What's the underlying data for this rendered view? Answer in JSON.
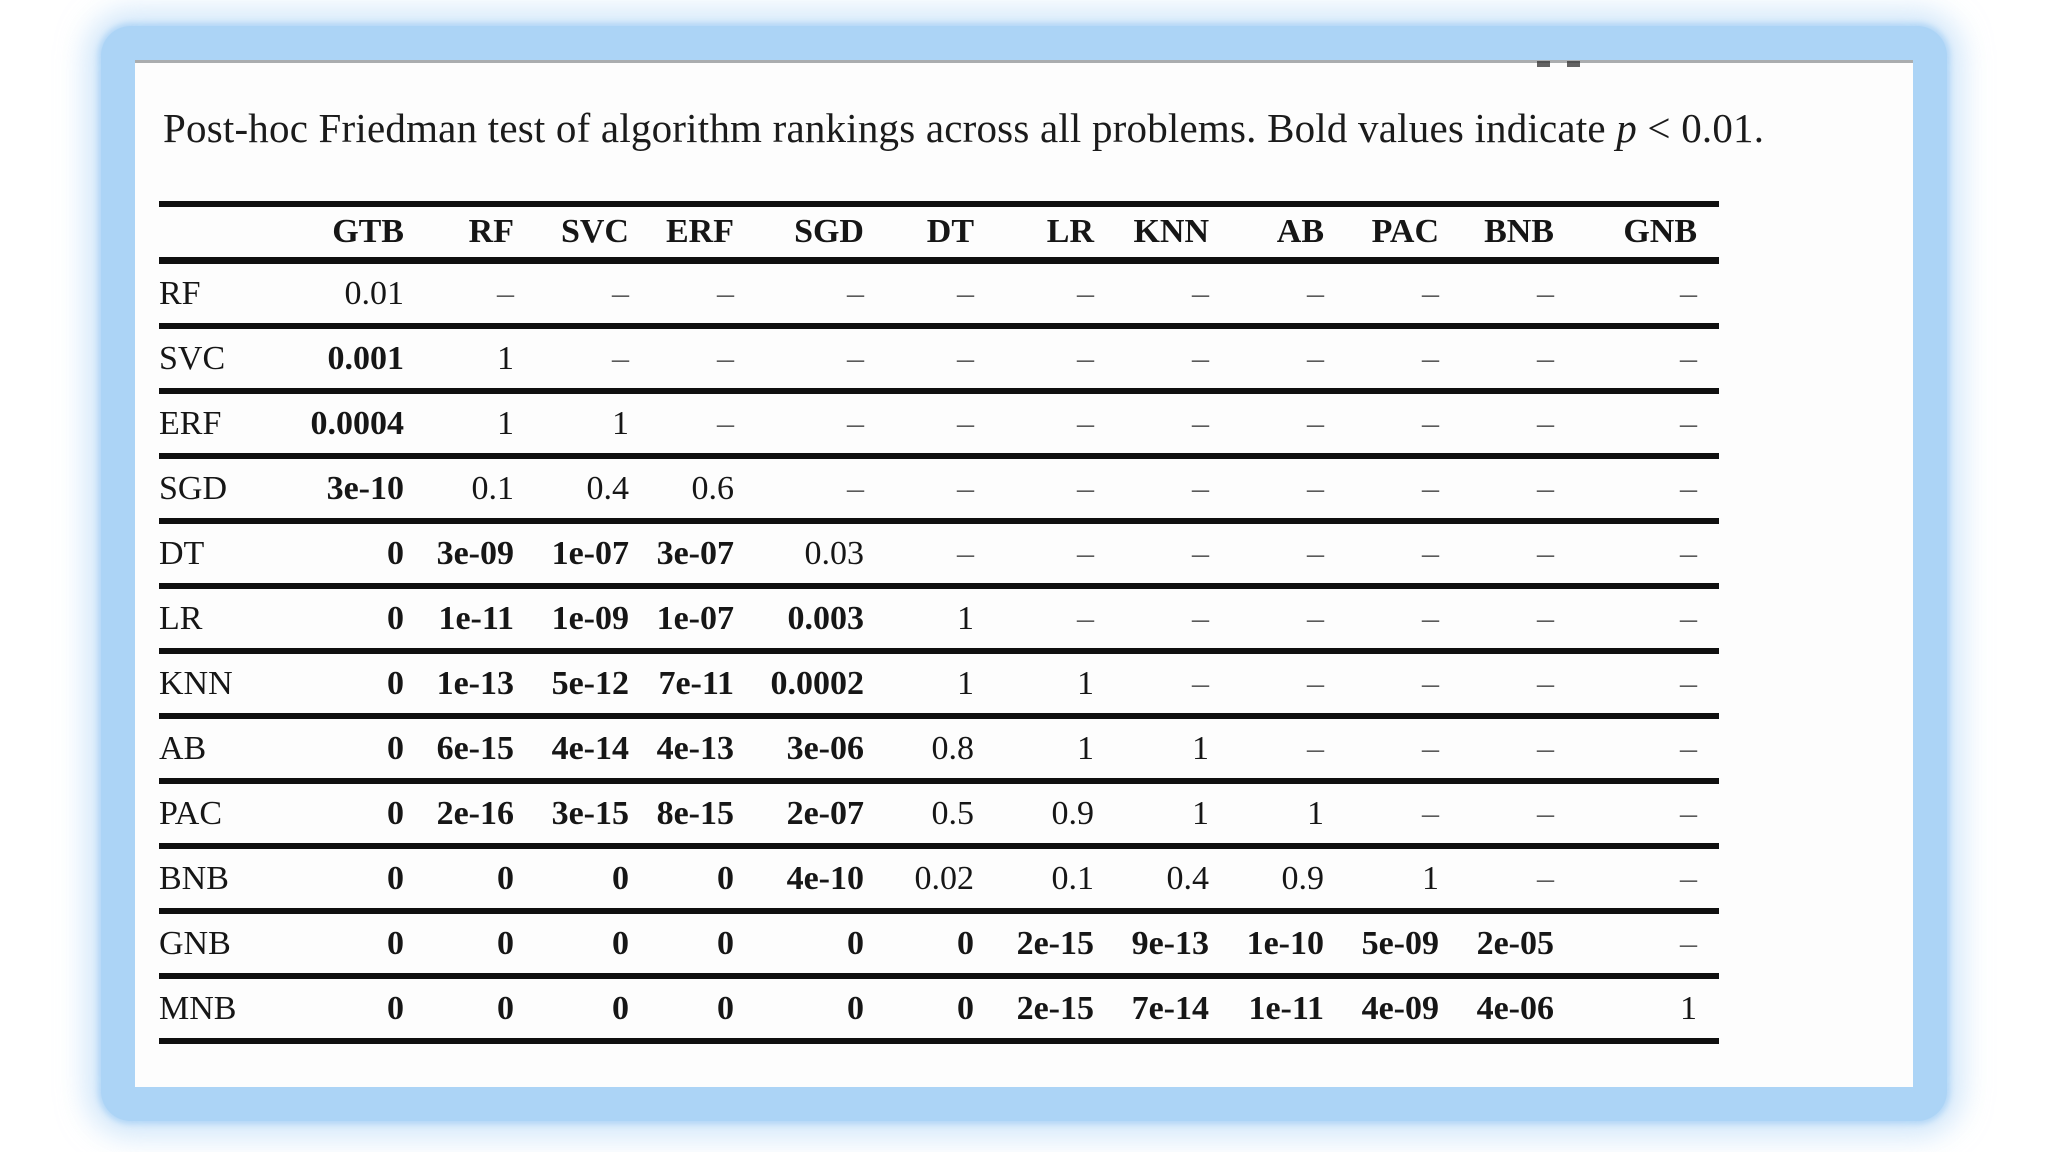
{
  "caption": {
    "prefix": "Post-hoc Friedman test of algorithm rankings across all problems. Bold values indicate ",
    "p_symbol": "p",
    "suffix": " < 0.01."
  },
  "table": {
    "dash": "–",
    "bold_rule": "p < 0.01",
    "columns": [
      "GTB",
      "RF",
      "SVC",
      "ERF",
      "SGD",
      "DT",
      "LR",
      "KNN",
      "AB",
      "PAC",
      "BNB",
      "GNB"
    ],
    "rows": [
      {
        "label": "RF",
        "values": [
          "0.01",
          "–",
          "–",
          "–",
          "–",
          "–",
          "–",
          "–",
          "–",
          "–",
          "–",
          "–"
        ]
      },
      {
        "label": "SVC",
        "values": [
          "0.001",
          "1",
          "–",
          "–",
          "–",
          "–",
          "–",
          "–",
          "–",
          "–",
          "–",
          "–"
        ]
      },
      {
        "label": "ERF",
        "values": [
          "0.0004",
          "1",
          "1",
          "–",
          "–",
          "–",
          "–",
          "–",
          "–",
          "–",
          "–",
          "–"
        ]
      },
      {
        "label": "SGD",
        "values": [
          "3e-10",
          "0.1",
          "0.4",
          "0.6",
          "–",
          "–",
          "–",
          "–",
          "–",
          "–",
          "–",
          "–"
        ]
      },
      {
        "label": "DT",
        "values": [
          "0",
          "3e-09",
          "1e-07",
          "3e-07",
          "0.03",
          "–",
          "–",
          "–",
          "–",
          "–",
          "–",
          "–"
        ]
      },
      {
        "label": "LR",
        "values": [
          "0",
          "1e-11",
          "1e-09",
          "1e-07",
          "0.003",
          "1",
          "–",
          "–",
          "–",
          "–",
          "–",
          "–"
        ]
      },
      {
        "label": "KNN",
        "values": [
          "0",
          "1e-13",
          "5e-12",
          "7e-11",
          "0.0002",
          "1",
          "1",
          "–",
          "–",
          "–",
          "–",
          "–"
        ]
      },
      {
        "label": "AB",
        "values": [
          "0",
          "6e-15",
          "4e-14",
          "4e-13",
          "3e-06",
          "0.8",
          "1",
          "1",
          "–",
          "–",
          "–",
          "–"
        ]
      },
      {
        "label": "PAC",
        "values": [
          "0",
          "2e-16",
          "3e-15",
          "8e-15",
          "2e-07",
          "0.5",
          "0.9",
          "1",
          "1",
          "–",
          "–",
          "–"
        ]
      },
      {
        "label": "BNB",
        "values": [
          "0",
          "0",
          "0",
          "0",
          "4e-10",
          "0.02",
          "0.1",
          "0.4",
          "0.9",
          "1",
          "–",
          "–"
        ]
      },
      {
        "label": "GNB",
        "values": [
          "0",
          "0",
          "0",
          "0",
          "0",
          "0",
          "2e-15",
          "9e-13",
          "1e-10",
          "5e-09",
          "2e-05",
          "–"
        ]
      },
      {
        "label": "MNB",
        "values": [
          "0",
          "0",
          "0",
          "0",
          "0",
          "0",
          "2e-15",
          "7e-14",
          "1e-11",
          "4e-09",
          "4e-06",
          "1"
        ]
      }
    ]
  },
  "colors": {
    "frame_blue": "#acd4f6",
    "frame_glow": "#ddeefb",
    "rule_black": "#101010",
    "text": "#1b1b1b",
    "dash_gray": "#5a5a5a",
    "top_hairline": "#aaadaf"
  }
}
